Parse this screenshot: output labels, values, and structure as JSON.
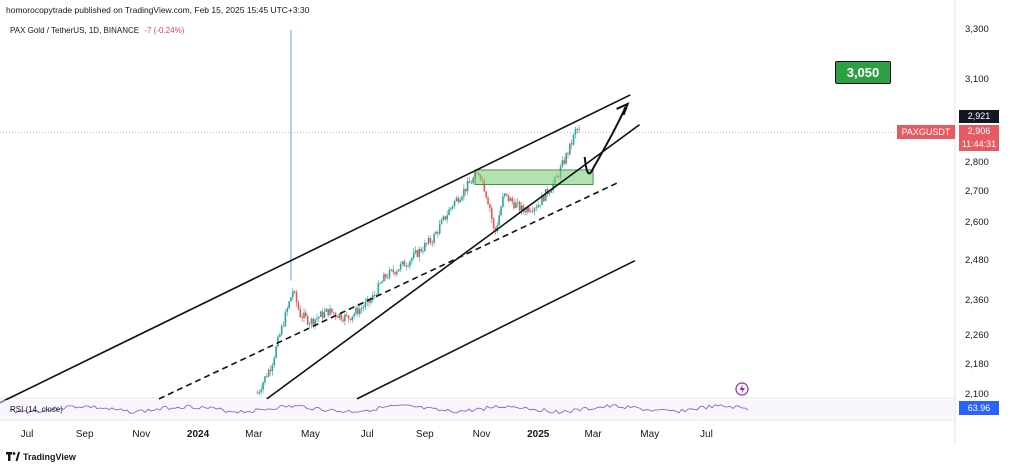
{
  "header": {
    "published": "homorocopytrade published on TradingView.com, Feb 15, 2025 15:45 UTC+3:30",
    "symbol": "PAX Gold / TetherUS, 1D, BINANCE",
    "change": "-7 (-0.24%)"
  },
  "footer": {
    "brand": "TradingView"
  },
  "labels": {
    "target": "3,050",
    "symbol_tag": "PAXGUSDT",
    "price_high": "2,921",
    "price_last": "2,906",
    "countdown": "11:44:31",
    "rsi_indicator": "RSI (14, close)",
    "rsi_value": "63.96"
  },
  "colors": {
    "candle_up": "#26a69a",
    "candle_down": "#ef5350",
    "zone": "#7fcf7f",
    "target_box": "#2ea043",
    "rsi_line": "#7e57c2",
    "price_tag": "#e85a62"
  },
  "chart_data": {
    "type": "candlestick",
    "y_axis": {
      "ticks": [
        {
          "value": 3300,
          "label": "3,300"
        },
        {
          "value": 3100,
          "label": "3,100"
        },
        {
          "value": 2800,
          "label": "2,800"
        },
        {
          "value": 2700,
          "label": "2,700"
        },
        {
          "value": 2600,
          "label": "2,600"
        },
        {
          "value": 2480,
          "label": "2,480"
        },
        {
          "value": 2360,
          "label": "2,360"
        },
        {
          "value": 2260,
          "label": "2,260"
        },
        {
          "value": 2180,
          "label": "2,180"
        },
        {
          "value": 2100,
          "label": "2,100"
        }
      ],
      "scale": "log"
    },
    "x_axis": {
      "ticks": [
        {
          "date": "2023-07-01",
          "label": "Jul",
          "year": false
        },
        {
          "date": "2023-09-01",
          "label": "Sep",
          "year": false
        },
        {
          "date": "2023-11-01",
          "label": "Nov",
          "year": false
        },
        {
          "date": "2024-01-01",
          "label": "2024",
          "year": true
        },
        {
          "date": "2024-03-01",
          "label": "Mar",
          "year": false
        },
        {
          "date": "2024-05-01",
          "label": "May",
          "year": false
        },
        {
          "date": "2024-07-01",
          "label": "Jul",
          "year": false
        },
        {
          "date": "2024-09-01",
          "label": "Sep",
          "year": false
        },
        {
          "date": "2024-11-01",
          "label": "Nov",
          "year": false
        },
        {
          "date": "2025-01-01",
          "label": "2025",
          "year": true
        },
        {
          "date": "2025-03-01",
          "label": "Mar",
          "year": false
        },
        {
          "date": "2025-05-01",
          "label": "May",
          "year": false
        },
        {
          "date": "2025-07-01",
          "label": "Jul",
          "year": false
        }
      ]
    },
    "price_path": [
      {
        "date": "2024-03-05",
        "price": 2105
      },
      {
        "date": "2024-03-20",
        "price": 2180
      },
      {
        "date": "2024-04-12",
        "price": 2390
      },
      {
        "date": "2024-04-20",
        "price": 2320
      },
      {
        "date": "2024-05-01",
        "price": 2300
      },
      {
        "date": "2024-05-20",
        "price": 2330
      },
      {
        "date": "2024-06-10",
        "price": 2310
      },
      {
        "date": "2024-07-05",
        "price": 2360
      },
      {
        "date": "2024-07-20",
        "price": 2430
      },
      {
        "date": "2024-08-15",
        "price": 2480
      },
      {
        "date": "2024-09-10",
        "price": 2550
      },
      {
        "date": "2024-10-01",
        "price": 2660
      },
      {
        "date": "2024-10-30",
        "price": 2770
      },
      {
        "date": "2024-11-10",
        "price": 2650
      },
      {
        "date": "2024-11-15",
        "price": 2560
      },
      {
        "date": "2024-11-25",
        "price": 2690
      },
      {
        "date": "2024-12-15",
        "price": 2640
      },
      {
        "date": "2025-01-01",
        "price": 2660
      },
      {
        "date": "2025-01-20",
        "price": 2740
      },
      {
        "date": "2025-02-05",
        "price": 2860
      },
      {
        "date": "2025-02-11",
        "price": 2921
      },
      {
        "date": "2025-02-15",
        "price": 2906
      }
    ],
    "spike": {
      "date": "2024-04-10",
      "high": 3300
    },
    "trendlines": [
      {
        "type": "solid",
        "from": {
          "date": "2023-05-20",
          "price": 2065
        },
        "to": {
          "date": "2025-04-10",
          "price": 3045
        }
      },
      {
        "type": "solid",
        "from": {
          "date": "2024-03-15",
          "price": 2090
        },
        "to": {
          "date": "2025-04-20",
          "price": 2935
        }
      },
      {
        "type": "dashed",
        "from": {
          "date": "2023-11-20",
          "price": 2090
        },
        "to": {
          "date": "2025-03-30",
          "price": 2735
        }
      },
      {
        "type": "solid",
        "from": {
          "date": "2024-06-20",
          "price": 2090
        },
        "to": {
          "date": "2025-04-15",
          "price": 2480
        }
      }
    ],
    "zone": {
      "from": "2024-10-25",
      "to": "2025-03-01",
      "low": 2725,
      "high": 2775
    },
    "projection": [
      {
        "date": "2025-02-20",
        "price": 2820
      },
      {
        "date": "2025-03-01",
        "price": 2780
      },
      {
        "date": "2025-03-15",
        "price": 2850
      },
      {
        "date": "2025-04-05",
        "price": 3000
      }
    ],
    "target": {
      "price": 3050
    },
    "last_price": 2906,
    "high_price": 2921,
    "rsi": {
      "period": 14,
      "source": "close",
      "value": 63.96
    }
  }
}
